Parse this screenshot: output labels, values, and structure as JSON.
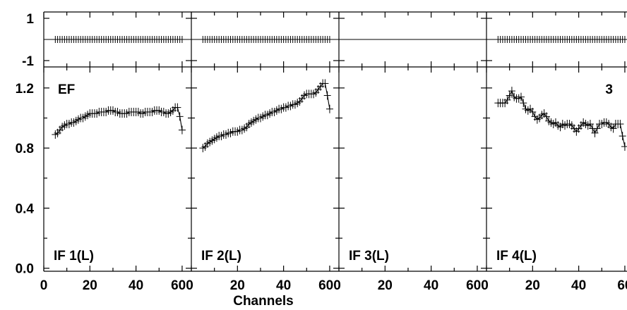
{
  "chart_data": {
    "type": "scatter",
    "xlabel": "Channels",
    "x_tick_labels": [
      "0",
      "20",
      "40",
      "60"
    ],
    "xlim": [
      0,
      64
    ],
    "phase_panel": {
      "ylim": [
        -1.3,
        1.3
      ],
      "y_tick_labels": [
        "1",
        "-1"
      ],
      "y_ticks": [
        1,
        -1
      ]
    },
    "amp_panel": {
      "ylim": [
        -0.02,
        1.34
      ],
      "y_tick_labels": [
        "1.2",
        "0.8",
        "0.4",
        "0.0"
      ],
      "y_ticks": [
        1.2,
        0.8,
        0.4,
        0.0
      ]
    },
    "panels": [
      {
        "label": "IF 1(L)",
        "corner_label": "EF",
        "phase": {
          "x": [
            5,
            60
          ],
          "step": 1,
          "y": 0
        },
        "amp": {
          "x": [
            5,
            6,
            7,
            8,
            9,
            10,
            11,
            12,
            13,
            14,
            15,
            16,
            17,
            18,
            19,
            20,
            21,
            22,
            23,
            24,
            25,
            26,
            27,
            28,
            29,
            30,
            31,
            32,
            33,
            34,
            35,
            36,
            37,
            38,
            39,
            40,
            41,
            42,
            43,
            44,
            45,
            46,
            47,
            48,
            49,
            50,
            51,
            52,
            53,
            54,
            55,
            56,
            57,
            58,
            59,
            60
          ],
          "y": [
            0.89,
            0.9,
            0.92,
            0.94,
            0.95,
            0.96,
            0.96,
            0.97,
            0.97,
            0.98,
            0.99,
            1.0,
            1.0,
            1.01,
            1.02,
            1.03,
            1.03,
            1.03,
            1.03,
            1.04,
            1.04,
            1.04,
            1.04,
            1.05,
            1.05,
            1.05,
            1.04,
            1.04,
            1.03,
            1.03,
            1.03,
            1.03,
            1.04,
            1.04,
            1.04,
            1.04,
            1.04,
            1.03,
            1.03,
            1.04,
            1.04,
            1.04,
            1.04,
            1.05,
            1.05,
            1.05,
            1.04,
            1.04,
            1.03,
            1.03,
            1.04,
            1.05,
            1.07,
            1.07,
            1.01,
            0.92
          ]
        }
      },
      {
        "label": "IF 2(L)",
        "corner_label": "",
        "phase": {
          "x": [
            5,
            60
          ],
          "step": 1,
          "y": 0
        },
        "amp": {
          "x": [
            5,
            6,
            7,
            8,
            9,
            10,
            11,
            12,
            13,
            14,
            15,
            16,
            17,
            18,
            19,
            20,
            21,
            22,
            23,
            24,
            25,
            26,
            27,
            28,
            29,
            30,
            31,
            32,
            33,
            34,
            35,
            36,
            37,
            38,
            39,
            40,
            41,
            42,
            43,
            44,
            45,
            46,
            47,
            48,
            49,
            50,
            51,
            52,
            53,
            54,
            55,
            56,
            57,
            58,
            59,
            60
          ],
          "y": [
            0.8,
            0.81,
            0.83,
            0.84,
            0.85,
            0.86,
            0.87,
            0.88,
            0.88,
            0.89,
            0.89,
            0.9,
            0.9,
            0.91,
            0.91,
            0.91,
            0.92,
            0.92,
            0.93,
            0.94,
            0.96,
            0.97,
            0.98,
            0.99,
            1.0,
            1.0,
            1.01,
            1.02,
            1.02,
            1.03,
            1.04,
            1.04,
            1.05,
            1.06,
            1.06,
            1.07,
            1.07,
            1.08,
            1.08,
            1.09,
            1.09,
            1.1,
            1.11,
            1.13,
            1.15,
            1.16,
            1.16,
            1.16,
            1.16,
            1.17,
            1.19,
            1.21,
            1.23,
            1.23,
            1.15,
            1.06
          ]
        }
      },
      {
        "label": "IF 3(L)",
        "corner_label": "",
        "phase": null,
        "amp": null
      },
      {
        "label": "IF 4(L)",
        "corner_label": "3",
        "phase": {
          "x": [
            5,
            60
          ],
          "step": 1,
          "y": 0
        },
        "amp": {
          "x": [
            5,
            6,
            7,
            8,
            9,
            10,
            11,
            12,
            13,
            14,
            15,
            16,
            17,
            18,
            19,
            20,
            21,
            22,
            23,
            24,
            25,
            26,
            27,
            28,
            29,
            30,
            31,
            32,
            33,
            34,
            35,
            36,
            37,
            38,
            39,
            40,
            41,
            42,
            43,
            44,
            45,
            46,
            47,
            48,
            49,
            50,
            51,
            52,
            53,
            54,
            55,
            56,
            57,
            58,
            59,
            60
          ],
          "y": [
            1.1,
            1.1,
            1.1,
            1.1,
            1.12,
            1.15,
            1.18,
            1.14,
            1.13,
            1.13,
            1.14,
            1.1,
            1.06,
            1.05,
            1.06,
            1.04,
            1.01,
            0.99,
            1.0,
            1.02,
            1.03,
            1.01,
            0.98,
            0.97,
            0.96,
            0.97,
            0.95,
            0.94,
            0.96,
            0.95,
            0.96,
            0.96,
            0.95,
            0.93,
            0.91,
            0.93,
            0.95,
            0.97,
            0.96,
            0.95,
            0.96,
            0.93,
            0.9,
            0.93,
            0.96,
            0.96,
            0.97,
            0.97,
            0.96,
            0.94,
            0.93,
            0.96,
            0.96,
            0.96,
            0.88,
            0.81
          ]
        }
      }
    ]
  }
}
